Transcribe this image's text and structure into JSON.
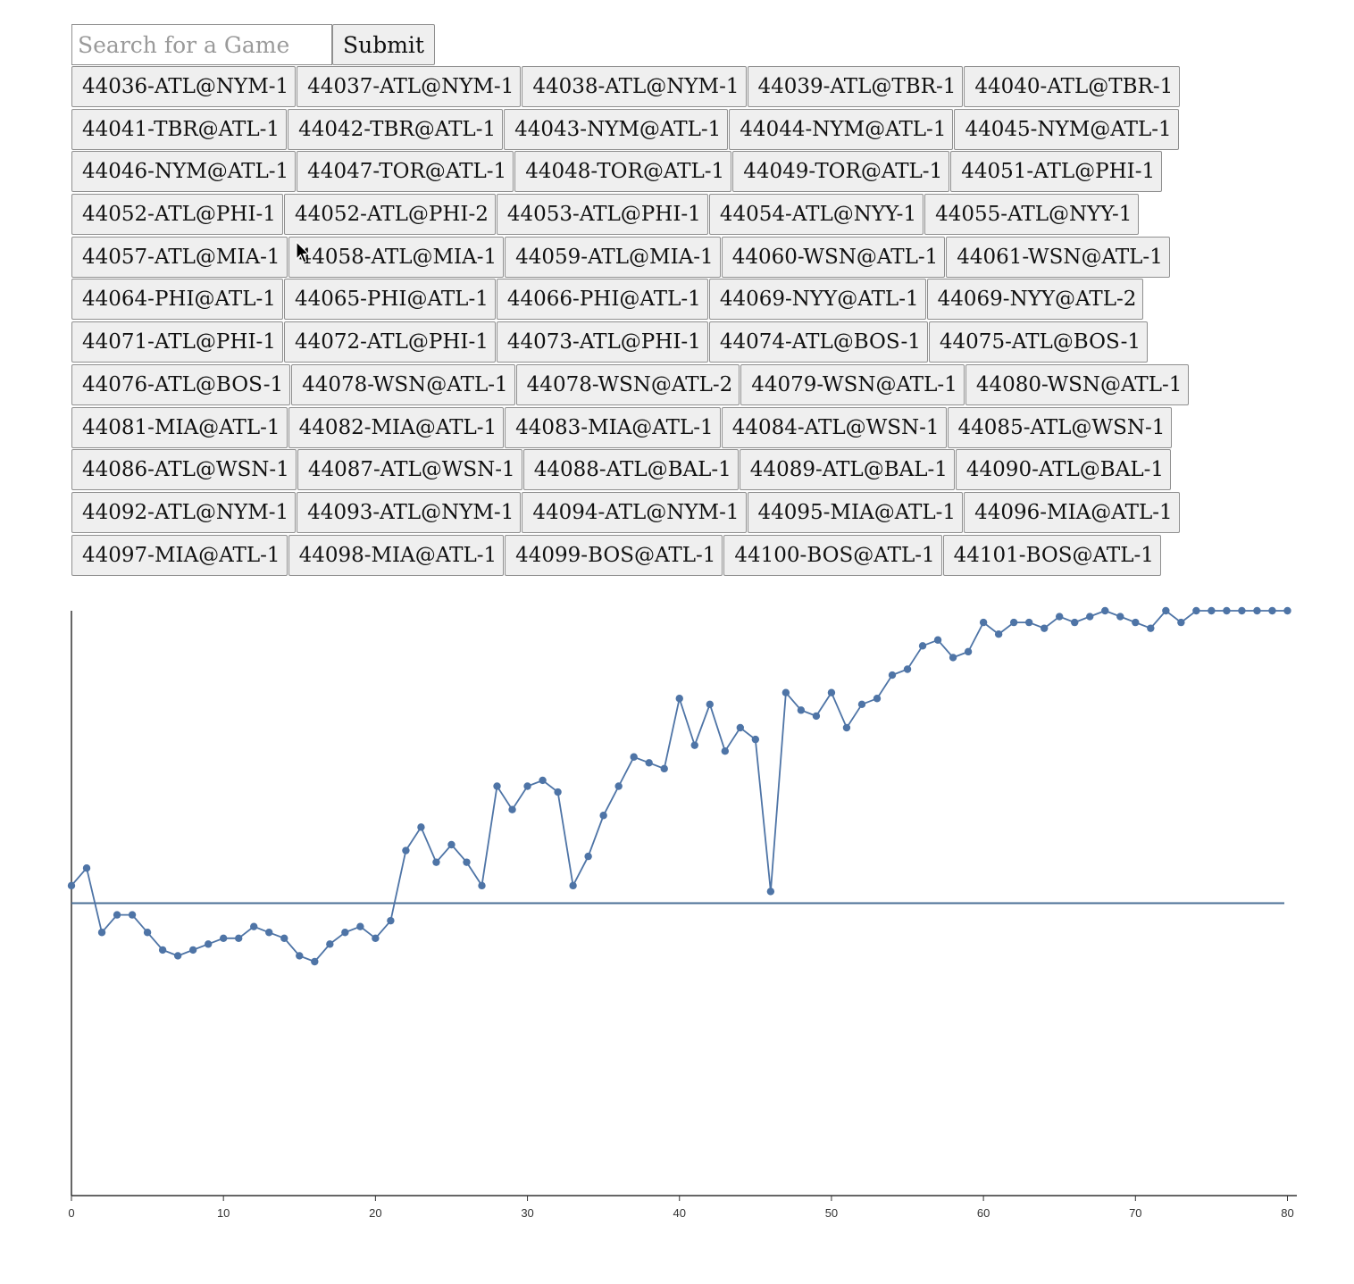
{
  "search": {
    "placeholder": "Search for a Game",
    "submit_label": "Submit"
  },
  "games": [
    [
      "44036-ATL@NYM-1",
      "44037-ATL@NYM-1",
      "44038-ATL@NYM-1",
      "44039-ATL@TBR-1",
      "44040-ATL@TBR-1"
    ],
    [
      "44041-TBR@ATL-1",
      "44042-TBR@ATL-1",
      "44043-NYM@ATL-1",
      "44044-NYM@ATL-1",
      "44045-NYM@ATL-1"
    ],
    [
      "44046-NYM@ATL-1",
      "44047-TOR@ATL-1",
      "44048-TOR@ATL-1",
      "44049-TOR@ATL-1",
      "44051-ATL@PHI-1"
    ],
    [
      "44052-ATL@PHI-1",
      "44052-ATL@PHI-2",
      "44053-ATL@PHI-1",
      "44054-ATL@NYY-1",
      "44055-ATL@NYY-1"
    ],
    [
      "44057-ATL@MIA-1",
      "44058-ATL@MIA-1",
      "44059-ATL@MIA-1",
      "44060-WSN@ATL-1",
      "44061-WSN@ATL-1"
    ],
    [
      "44064-PHI@ATL-1",
      "44065-PHI@ATL-1",
      "44066-PHI@ATL-1",
      "44069-NYY@ATL-1",
      "44069-NYY@ATL-2"
    ],
    [
      "44071-ATL@PHI-1",
      "44072-ATL@PHI-1",
      "44073-ATL@PHI-1",
      "44074-ATL@BOS-1",
      "44075-ATL@BOS-1"
    ],
    [
      "44076-ATL@BOS-1",
      "44078-WSN@ATL-1",
      "44078-WSN@ATL-2",
      "44079-WSN@ATL-1",
      "44080-WSN@ATL-1"
    ],
    [
      "44081-MIA@ATL-1",
      "44082-MIA@ATL-1",
      "44083-MIA@ATL-1",
      "44084-ATL@WSN-1",
      "44085-ATL@WSN-1"
    ],
    [
      "44086-ATL@WSN-1",
      "44087-ATL@WSN-1",
      "44088-ATL@BAL-1",
      "44089-ATL@BAL-1",
      "44090-ATL@BAL-1"
    ],
    [
      "44092-ATL@NYM-1",
      "44093-ATL@NYM-1",
      "44094-ATL@NYM-1",
      "44095-MIA@ATL-1",
      "44096-MIA@ATL-1"
    ],
    [
      "44097-MIA@ATL-1",
      "44098-MIA@ATL-1",
      "44099-BOS@ATL-1",
      "44100-BOS@ATL-1",
      "44101-BOS@ATL-1"
    ]
  ],
  "colors": {
    "line": "#4e74a6",
    "reference_line": "#4a6f96",
    "axis": "#333333",
    "button_bg": "#efefef"
  },
  "chart_data": {
    "type": "line",
    "title": "",
    "xlabel": "",
    "ylabel": "",
    "xlim": [
      0,
      80.5
    ],
    "ylim": [
      0,
      1
    ],
    "x_ticks": [
      0,
      10,
      20,
      30,
      40,
      50,
      60,
      70,
      80
    ],
    "x_tick_labels": [
      "0",
      "10",
      "20",
      "30",
      "40",
      "50",
      "60",
      "70",
      "80"
    ],
    "reference_y": 0.5,
    "grid": false,
    "series": [
      {
        "x": [
          0,
          1,
          2,
          3,
          4,
          5,
          6,
          7,
          8,
          9,
          10,
          11,
          12,
          13,
          14,
          15,
          16,
          17,
          18,
          19,
          20,
          21,
          22,
          23,
          24,
          25,
          26,
          27,
          28,
          29,
          30,
          31,
          32,
          33,
          34,
          35,
          36,
          37,
          38,
          39,
          40,
          41,
          42,
          43,
          44,
          45,
          46,
          47,
          48,
          49,
          50,
          51,
          52,
          53,
          54,
          55,
          56,
          57,
          58,
          59,
          60,
          61,
          62,
          63,
          64,
          65,
          66,
          67,
          68,
          69,
          70,
          71,
          72,
          73,
          74,
          75,
          76,
          77,
          78,
          79,
          80
        ],
        "y": [
          0.53,
          0.56,
          0.45,
          0.48,
          0.48,
          0.45,
          0.42,
          0.41,
          0.42,
          0.43,
          0.44,
          0.44,
          0.46,
          0.45,
          0.44,
          0.41,
          0.4,
          0.43,
          0.45,
          0.46,
          0.44,
          0.47,
          0.59,
          0.63,
          0.57,
          0.6,
          0.57,
          0.53,
          0.7,
          0.66,
          0.7,
          0.71,
          0.69,
          0.53,
          0.58,
          0.65,
          0.7,
          0.75,
          0.74,
          0.73,
          0.85,
          0.77,
          0.84,
          0.76,
          0.8,
          0.78,
          0.52,
          0.86,
          0.83,
          0.82,
          0.86,
          0.8,
          0.84,
          0.85,
          0.89,
          0.9,
          0.94,
          0.95,
          0.92,
          0.93,
          0.98,
          0.96,
          0.98,
          0.98,
          0.97,
          0.99,
          0.98,
          0.99,
          1.0,
          0.99,
          0.98,
          0.97,
          1.0,
          0.98,
          1.0,
          1.0,
          1.0,
          1.0,
          1.0,
          1.0,
          1.0
        ]
      }
    ]
  }
}
